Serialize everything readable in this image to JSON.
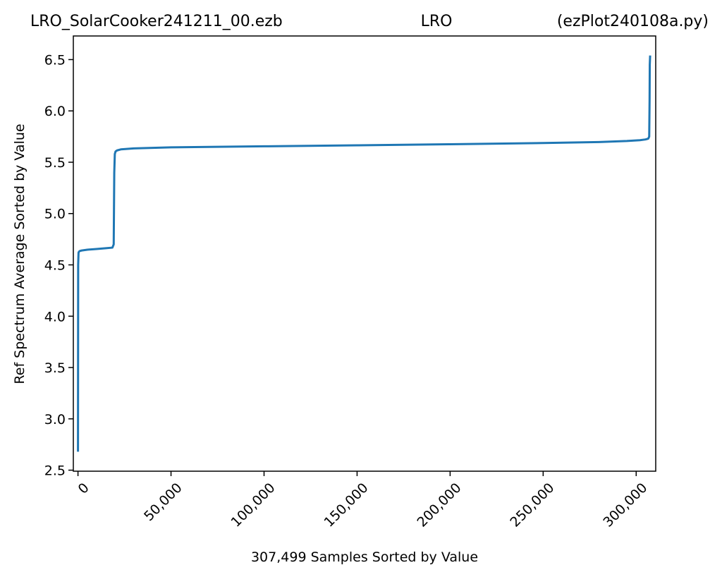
{
  "header": {
    "left": "LRO_SolarCooker241211_00.ezb",
    "center": "LRO",
    "right": "(ezPlot240108a.py)"
  },
  "chart_data": {
    "type": "line",
    "title": "",
    "xlabel": "307,499 Samples Sorted by Value",
    "ylabel": "Ref Spectrum Average Sorted by Value",
    "xlim": [
      -2500,
      310500
    ],
    "ylim": [
      2.49,
      6.73
    ],
    "x_ticks": [
      0,
      50000,
      100000,
      150000,
      200000,
      250000,
      300000
    ],
    "x_tick_labels": [
      "0",
      "50,000",
      "100,000",
      "150,000",
      "200,000",
      "250,000",
      "300,000"
    ],
    "y_ticks": [
      2.5,
      3.0,
      3.5,
      4.0,
      4.5,
      5.0,
      5.5,
      6.0,
      6.5
    ],
    "y_tick_labels": [
      "2.5",
      "3.0",
      "3.5",
      "4.0",
      "4.5",
      "5.0",
      "5.5",
      "6.0",
      "6.5"
    ],
    "grid": false,
    "line_color": "#1f77b4",
    "series": [
      {
        "x": [
          0,
          100,
          300,
          600,
          1000,
          2000,
          5000,
          10000,
          15000,
          18500,
          19200,
          19500,
          19800,
          20200,
          21000,
          23000,
          30000,
          50000,
          100000,
          150000,
          200000,
          250000,
          280000,
          295000,
          302000,
          305000,
          306500,
          307000,
          307200,
          307300,
          307499
        ],
        "y": [
          2.68,
          4.5,
          4.62,
          4.63,
          4.635,
          4.64,
          4.648,
          4.655,
          4.662,
          4.668,
          4.7,
          5.4,
          5.58,
          5.605,
          5.615,
          5.625,
          5.635,
          5.645,
          5.655,
          5.665,
          5.675,
          5.687,
          5.697,
          5.707,
          5.715,
          5.722,
          5.73,
          5.75,
          6.1,
          6.45,
          6.54
        ]
      }
    ]
  }
}
